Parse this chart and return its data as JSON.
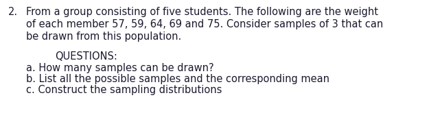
{
  "background_color": "#ffffff",
  "text_color": "#1a1a2e",
  "number": "2.",
  "line1": "From a group consisting of five students. The following are the weight",
  "line2": "of each member 57, 59, 64, 69 and 75. Consider samples of 3 that can",
  "line3": "be drawn from this population.",
  "questions_header": "QUESTIONS:",
  "qa": "a. How many samples can be drawn?",
  "qb": "b. List all the possible samples and the corresponding mean",
  "qc": "c. Construct the sampling distributions",
  "font_size_body": 10.5,
  "font_weight": "normal",
  "font_family": "DejaVu Sans"
}
